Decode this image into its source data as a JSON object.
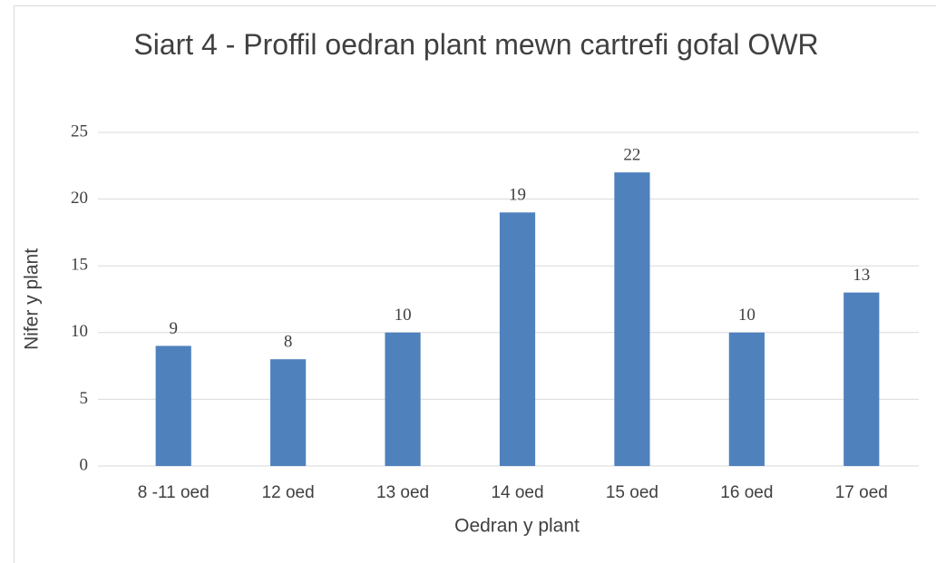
{
  "chart_data": {
    "type": "bar",
    "title": "Siart 4 - Proffil oedran plant mewn cartrefi gofal OWR",
    "x_label": "Oedran y plant",
    "y_label": "Nifer y plant",
    "categories": [
      "8 -11 oed",
      "12 oed",
      "13 oed",
      "14 oed",
      "15 oed",
      "16 oed",
      "17 oed"
    ],
    "values": [
      9,
      8,
      10,
      19,
      22,
      10,
      13
    ],
    "color": "#4f81bd",
    "ylim": [
      0,
      25
    ],
    "yticks": [
      0,
      5,
      10,
      15,
      20,
      25
    ],
    "grid": true
  }
}
